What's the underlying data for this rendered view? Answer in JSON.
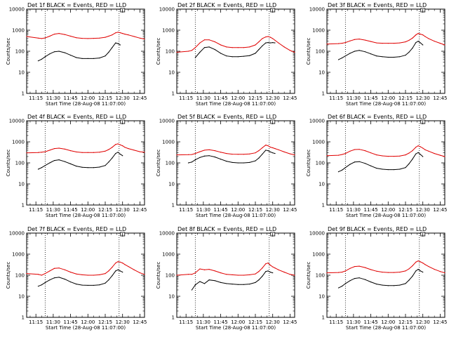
{
  "figure": {
    "panel_title_suffix": "BLACK = Events, RED = LLD",
    "xlabel": "Start Time (28-Aug-08 11:07:00)",
    "ylabel": "Counts/sec",
    "x_ticks": [
      "11:15",
      "11:30",
      "11:45",
      "12:00",
      "12:15",
      "12:30",
      "12:45"
    ],
    "y_ticks": [
      "1",
      "10",
      "100",
      "1000",
      "10000"
    ]
  },
  "colors": {
    "events": "#000000",
    "lld": "#e00000",
    "axes": "#000000"
  },
  "chart_data": [
    {
      "type": "line",
      "title": "Det 1f BLACK = Events, RED = LLD",
      "xlabel": "Start Time (28-Aug-08 11:07:00)",
      "ylabel": "Counts/sec",
      "y_scale": "log",
      "ylim": [
        1,
        10000
      ],
      "xlim": [
        "11:07",
        "12:49"
      ],
      "grid": false,
      "vlines": [
        "11:23",
        "12:27"
      ],
      "x": [
        "11:07",
        "11:17",
        "11:20",
        "11:23",
        "11:27",
        "11:31",
        "11:35",
        "11:40",
        "11:45",
        "11:50",
        "11:55",
        "12:00",
        "12:05",
        "12:10",
        "12:15",
        "12:18",
        "12:21",
        "12:24",
        "12:26",
        "12:28",
        "12:30",
        "12:32",
        "12:35",
        "12:40",
        "12:45",
        "12:49"
      ],
      "series": [
        {
          "name": "LLD",
          "color": "red",
          "values": [
            500,
            420,
            400,
            430,
            520,
            650,
            700,
            620,
            520,
            440,
            410,
            400,
            410,
            420,
            460,
            520,
            600,
            750,
            800,
            760,
            700,
            650,
            600,
            500,
            420,
            380
          ]
        },
        {
          "name": "Events",
          "color": "black",
          "values": [
            null,
            35,
            42,
            55,
            75,
            95,
            100,
            85,
            65,
            50,
            45,
            45,
            45,
            48,
            60,
            90,
            150,
            250,
            230,
            200,
            null,
            null,
            null,
            null,
            null,
            null
          ]
        }
      ]
    },
    {
      "type": "line",
      "title": "Det 2f BLACK = Events, RED = LLD",
      "xlabel": "Start Time (28-Aug-08 11:07:00)",
      "ylabel": "Counts/sec",
      "y_scale": "log",
      "ylim": [
        1,
        10000
      ],
      "xlim": [
        "11:07",
        "12:49"
      ],
      "grid": false,
      "vlines": [
        "11:23",
        "12:27"
      ],
      "x": [
        "11:07",
        "11:17",
        "11:20",
        "11:23",
        "11:27",
        "11:31",
        "11:35",
        "11:40",
        "11:45",
        "11:50",
        "11:55",
        "12:00",
        "12:05",
        "12:10",
        "12:15",
        "12:18",
        "12:21",
        "12:24",
        "12:26",
        "12:28",
        "12:30",
        "12:32",
        "12:35",
        "12:40",
        "12:45",
        "12:49"
      ],
      "series": [
        {
          "name": "LLD",
          "color": "red",
          "values": [
            90,
            100,
            110,
            150,
            250,
            350,
            350,
            280,
            200,
            160,
            150,
            150,
            150,
            160,
            200,
            280,
            400,
            480,
            500,
            460,
            400,
            330,
            250,
            160,
            110,
            90
          ]
        },
        {
          "name": "Events",
          "color": "black",
          "values": [
            null,
            null,
            null,
            50,
            90,
            150,
            160,
            120,
            80,
            60,
            55,
            55,
            58,
            62,
            80,
            120,
            180,
            250,
            260,
            250,
            260,
            250,
            null,
            null,
            null,
            null
          ]
        }
      ]
    },
    {
      "type": "line",
      "title": "Det 3f BLACK = Events, RED = LLD",
      "xlabel": "Start Time (28-Aug-08 11:07:00)",
      "ylabel": "Counts/sec",
      "y_scale": "log",
      "ylim": [
        1,
        10000
      ],
      "xlim": [
        "11:07",
        "12:49"
      ],
      "grid": false,
      "vlines": [
        "11:23",
        "12:27"
      ],
      "x": [
        "11:07",
        "11:17",
        "11:20",
        "11:23",
        "11:27",
        "11:31",
        "11:35",
        "11:40",
        "11:45",
        "11:50",
        "11:55",
        "12:00",
        "12:05",
        "12:10",
        "12:15",
        "12:18",
        "12:21",
        "12:24",
        "12:26",
        "12:28",
        "12:30",
        "12:32",
        "12:35",
        "12:40",
        "12:45",
        "12:49"
      ],
      "series": [
        {
          "name": "LLD",
          "color": "red",
          "values": [
            220,
            230,
            240,
            260,
            310,
            360,
            380,
            340,
            290,
            250,
            240,
            240,
            240,
            250,
            280,
            330,
            420,
            600,
            700,
            650,
            600,
            500,
            400,
            300,
            240,
            200
          ]
        },
        {
          "name": "Events",
          "color": "black",
          "values": [
            null,
            40,
            48,
            60,
            80,
            100,
            110,
            95,
            75,
            60,
            55,
            52,
            52,
            55,
            65,
            90,
            140,
            260,
            300,
            250,
            200,
            null,
            null,
            null,
            null,
            null
          ]
        }
      ]
    },
    {
      "type": "line",
      "title": "Det 4f BLACK = Events, RED = LLD",
      "xlabel": "Start Time (28-Aug-08 11:07:00)",
      "ylabel": "Counts/sec",
      "y_scale": "log",
      "ylim": [
        1,
        10000
      ],
      "xlim": [
        "11:07",
        "12:49"
      ],
      "grid": false,
      "vlines": [
        "11:23",
        "12:27"
      ],
      "x": [
        "11:07",
        "11:17",
        "11:20",
        "11:23",
        "11:27",
        "11:31",
        "11:35",
        "11:40",
        "11:45",
        "11:50",
        "11:55",
        "12:00",
        "12:05",
        "12:10",
        "12:15",
        "12:18",
        "12:21",
        "12:24",
        "12:26",
        "12:28",
        "12:30",
        "12:32",
        "12:35",
        "12:40",
        "12:45",
        "12:49"
      ],
      "series": [
        {
          "name": "LLD",
          "color": "red",
          "values": [
            300,
            310,
            320,
            340,
            400,
            480,
            500,
            450,
            380,
            330,
            310,
            310,
            310,
            320,
            360,
            430,
            550,
            750,
            800,
            720,
            650,
            550,
            480,
            400,
            340,
            320
          ]
        },
        {
          "name": "Events",
          "color": "black",
          "values": [
            null,
            50,
            60,
            75,
            100,
            130,
            140,
            115,
            90,
            70,
            62,
            60,
            60,
            63,
            75,
            110,
            170,
            280,
            320,
            260,
            220,
            null,
            null,
            null,
            null,
            null
          ]
        }
      ]
    },
    {
      "type": "line",
      "title": "Det 5f BLACK = Events, RED = LLD",
      "xlabel": "Start Time (28-Aug-08 11:07:00)",
      "ylabel": "Counts/sec",
      "y_scale": "log",
      "ylim": [
        1,
        10000
      ],
      "xlim": [
        "11:07",
        "12:49"
      ],
      "grid": false,
      "vlines": [
        "11:23",
        "12:27"
      ],
      "x": [
        "11:07",
        "11:17",
        "11:20",
        "11:23",
        "11:27",
        "11:31",
        "11:35",
        "11:40",
        "11:45",
        "11:50",
        "11:55",
        "12:00",
        "12:05",
        "12:10",
        "12:15",
        "12:18",
        "12:21",
        "12:24",
        "12:26",
        "12:28",
        "12:30",
        "12:32",
        "12:35",
        "12:40",
        "12:45",
        "12:49"
      ],
      "series": [
        {
          "name": "LLD",
          "color": "red",
          "values": [
            240,
            245,
            250,
            280,
            340,
            400,
            420,
            380,
            320,
            280,
            260,
            255,
            255,
            265,
            300,
            380,
            520,
            700,
            650,
            560,
            520,
            480,
            420,
            330,
            270,
            240
          ]
        },
        {
          "name": "Events",
          "color": "black",
          "values": [
            null,
            100,
            110,
            140,
            180,
            210,
            220,
            190,
            150,
            120,
            105,
            100,
            100,
            105,
            125,
            170,
            260,
            400,
            380,
            330,
            300,
            280,
            null,
            null,
            null,
            null
          ]
        }
      ]
    },
    {
      "type": "line",
      "title": "Det 6f BLACK = Events, RED = LLD",
      "xlabel": "Start Time (28-Aug-08 11:07:00)",
      "ylabel": "Counts/sec",
      "y_scale": "log",
      "ylim": [
        1,
        10000
      ],
      "xlim": [
        "11:07",
        "12:49"
      ],
      "grid": false,
      "vlines": [
        "11:23",
        "12:27"
      ],
      "x": [
        "11:07",
        "11:17",
        "11:20",
        "11:23",
        "11:27",
        "11:31",
        "11:35",
        "11:40",
        "11:45",
        "11:50",
        "11:55",
        "12:00",
        "12:05",
        "12:10",
        "12:15",
        "12:18",
        "12:21",
        "12:24",
        "12:26",
        "12:28",
        "12:30",
        "12:32",
        "12:35",
        "12:40",
        "12:45",
        "12:49"
      ],
      "series": [
        {
          "name": "LLD",
          "color": "red",
          "values": [
            220,
            230,
            250,
            280,
            360,
            430,
            440,
            380,
            300,
            240,
            215,
            205,
            205,
            210,
            240,
            290,
            380,
            560,
            650,
            580,
            500,
            420,
            360,
            280,
            230,
            200
          ]
        },
        {
          "name": "Events",
          "color": "black",
          "values": [
            null,
            38,
            45,
            60,
            85,
            110,
            115,
            95,
            72,
            56,
            50,
            48,
            48,
            50,
            60,
            90,
            150,
            270,
            310,
            250,
            200,
            null,
            null,
            null,
            null,
            null
          ]
        }
      ]
    },
    {
      "type": "line",
      "title": "Det 7f BLACK = Events, RED = LLD",
      "xlabel": "Start Time (28-Aug-08 11:07:00)",
      "ylabel": "Counts/sec",
      "y_scale": "log",
      "ylim": [
        1,
        10000
      ],
      "xlim": [
        "11:07",
        "12:49"
      ],
      "grid": false,
      "vlines": [
        "11:23",
        "12:27"
      ],
      "x": [
        "11:07",
        "11:17",
        "11:20",
        "11:23",
        "11:27",
        "11:31",
        "11:35",
        "11:40",
        "11:45",
        "11:50",
        "11:55",
        "12:00",
        "12:05",
        "12:10",
        "12:15",
        "12:18",
        "12:21",
        "12:24",
        "12:26",
        "12:28",
        "12:30",
        "12:32",
        "12:35",
        "12:40",
        "12:45",
        "12:49"
      ],
      "series": [
        {
          "name": "LLD",
          "color": "red",
          "values": [
            120,
            110,
            100,
            120,
            160,
            210,
            220,
            180,
            140,
            115,
            105,
            100,
            100,
            105,
            120,
            160,
            240,
            380,
            440,
            420,
            380,
            320,
            260,
            180,
            130,
            110
          ]
        },
        {
          "name": "Events",
          "color": "black",
          "values": [
            null,
            30,
            35,
            45,
            60,
            75,
            80,
            65,
            48,
            38,
            34,
            33,
            33,
            35,
            42,
            60,
            95,
            160,
            180,
            160,
            140,
            null,
            null,
            null,
            null,
            null
          ]
        }
      ]
    },
    {
      "type": "line",
      "title": "Det 8f BLACK = Events, RED = LLD",
      "xlabel": "Start Time (28-Aug-08 11:07:00)",
      "ylabel": "Counts/sec",
      "y_scale": "log",
      "ylim": [
        1,
        10000
      ],
      "xlim": [
        "11:07",
        "12:49"
      ],
      "grid": false,
      "vlines": [
        "11:23",
        "12:27"
      ],
      "x": [
        "11:07",
        "11:17",
        "11:20",
        "11:23",
        "11:27",
        "11:31",
        "11:35",
        "11:40",
        "11:45",
        "11:50",
        "11:55",
        "12:00",
        "12:05",
        "12:10",
        "12:15",
        "12:18",
        "12:21",
        "12:24",
        "12:26",
        "12:28",
        "12:30",
        "12:32",
        "12:35",
        "12:40",
        "12:45",
        "12:49"
      ],
      "series": [
        {
          "name": "LLD",
          "color": "red",
          "values": [
            100,
            110,
            110,
            130,
            200,
            180,
            190,
            160,
            130,
            110,
            105,
            100,
            100,
            105,
            115,
            150,
            220,
            350,
            380,
            300,
            250,
            220,
            180,
            140,
            110,
            100
          ]
        },
        {
          "name": "Events",
          "color": "black",
          "values": [
            null,
            null,
            20,
            35,
            50,
            40,
            60,
            55,
            45,
            40,
            38,
            36,
            36,
            38,
            45,
            60,
            90,
            150,
            160,
            140,
            130,
            null,
            null,
            null,
            null,
            null
          ]
        }
      ]
    },
    {
      "type": "line",
      "title": "Det 9f BLACK = Events, RED = LLD",
      "xlabel": "Start Time (28-Aug-08 11:07:00)",
      "ylabel": "Counts/sec",
      "y_scale": "log",
      "ylim": [
        1,
        10000
      ],
      "xlim": [
        "11:07",
        "12:49"
      ],
      "grid": false,
      "vlines": [
        "11:23",
        "12:27"
      ],
      "x": [
        "11:07",
        "11:17",
        "11:20",
        "11:23",
        "11:27",
        "11:31",
        "11:35",
        "11:40",
        "11:45",
        "11:50",
        "11:55",
        "12:00",
        "12:05",
        "12:10",
        "12:15",
        "12:18",
        "12:21",
        "12:24",
        "12:26",
        "12:28",
        "12:30",
        "12:32",
        "12:35",
        "12:40",
        "12:45",
        "12:49"
      ],
      "series": [
        {
          "name": "LLD",
          "color": "red",
          "values": [
            130,
            135,
            140,
            160,
            210,
            260,
            270,
            230,
            185,
            155,
            140,
            135,
            135,
            140,
            160,
            200,
            280,
            420,
            480,
            430,
            380,
            320,
            260,
            190,
            150,
            130
          ]
        },
        {
          "name": "Events",
          "color": "black",
          "values": [
            null,
            25,
            30,
            40,
            55,
            70,
            75,
            62,
            48,
            38,
            34,
            32,
            32,
            34,
            40,
            58,
            90,
            160,
            190,
            160,
            140,
            null,
            null,
            null,
            null,
            null
          ]
        }
      ]
    }
  ]
}
